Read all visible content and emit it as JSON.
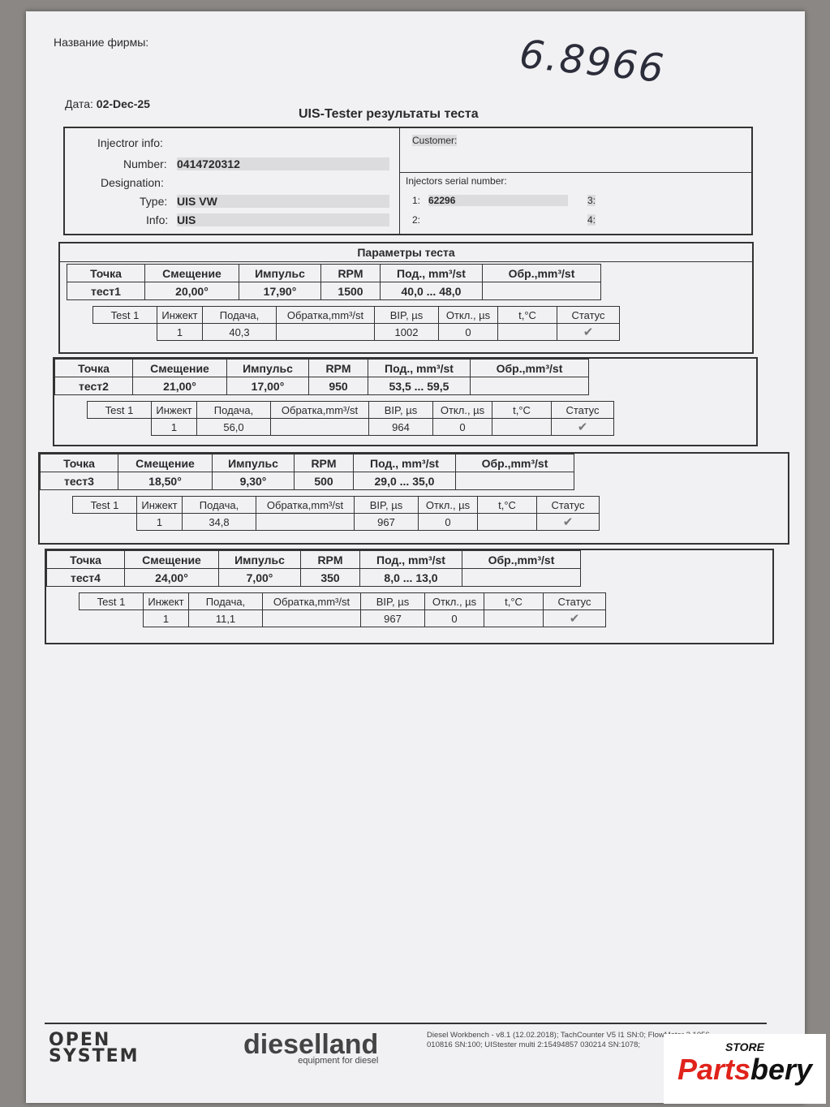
{
  "header": {
    "firm_label": "Название фирмы:",
    "date_label": "Дата:",
    "date": "02-Dec-25",
    "title": "UIS-Tester результаты теста",
    "handwritten": "6.8966"
  },
  "injector": {
    "section": "Injectror info:",
    "number_label": "Number:",
    "number": "0414720312",
    "designation_label": "Designation:",
    "type_label": "Type:",
    "type": "UIS VW",
    "info_label": "Info:",
    "info": "UIS"
  },
  "customer": {
    "label": "Customer:",
    "serial_label": "Injectors serial number:",
    "s1_label": "1:",
    "s1": "62296",
    "s2_label": "2:",
    "s3_label": "3:",
    "s4_label": "4:"
  },
  "params_title": "Параметры теста",
  "param_headers": [
    "Точка",
    "Смещение",
    "Импульс",
    "RPM",
    "Под., mm³/st",
    "Обр.,mm³/st"
  ],
  "result_headers": [
    "Test 1",
    "Инжект",
    "Подача,",
    "Обратка,mm³/st",
    "BIP, µs",
    "Откл., µs",
    "t,°C",
    "Статус"
  ],
  "tests": [
    {
      "point": "тест1",
      "offset": "20,00°",
      "impulse": "17,90°",
      "rpm": "1500",
      "delivery": "40,0 ... 48,0",
      "return": "",
      "injector": "1",
      "feed": "40,3",
      "ret": "",
      "bip": "1002",
      "dev": "0",
      "temp": "",
      "status": "ok"
    },
    {
      "point": "тест2",
      "offset": "21,00°",
      "impulse": "17,00°",
      "rpm": "950",
      "delivery": "53,5 ... 59,5",
      "return": "",
      "injector": "1",
      "feed": "56,0",
      "ret": "",
      "bip": "964",
      "dev": "0",
      "temp": "",
      "status": "ok"
    },
    {
      "point": "тест3",
      "offset": "18,50°",
      "impulse": "9,30°",
      "rpm": "500",
      "delivery": "29,0 ... 35,0",
      "return": "",
      "injector": "1",
      "feed": "34,8",
      "ret": "",
      "bip": "967",
      "dev": "0",
      "temp": "",
      "status": "ok"
    },
    {
      "point": "тест4",
      "offset": "24,00°",
      "impulse": "7,00°",
      "rpm": "350",
      "delivery": "8,0 ... 13,0",
      "return": "",
      "injector": "1",
      "feed": "11,1",
      "ret": "",
      "bip": "967",
      "dev": "0",
      "temp": "",
      "status": "ok"
    }
  ],
  "footer": {
    "logo_open_system": "OPEN SYSTEM",
    "logo_dieselland": "dieselland",
    "dieselland_tagline": "equipment for diesel",
    "note": "Diesel Workbench - v8.1 (12.02.2018); TachCounter V5 I1 SN:0; FlowMeter 2.1056 010816 SN:100; UIStester multi 2:15494857 030214 SN:1078;"
  },
  "watermark": {
    "store": "STORE",
    "brand_a": "Parts",
    "brand_b": "bery"
  }
}
